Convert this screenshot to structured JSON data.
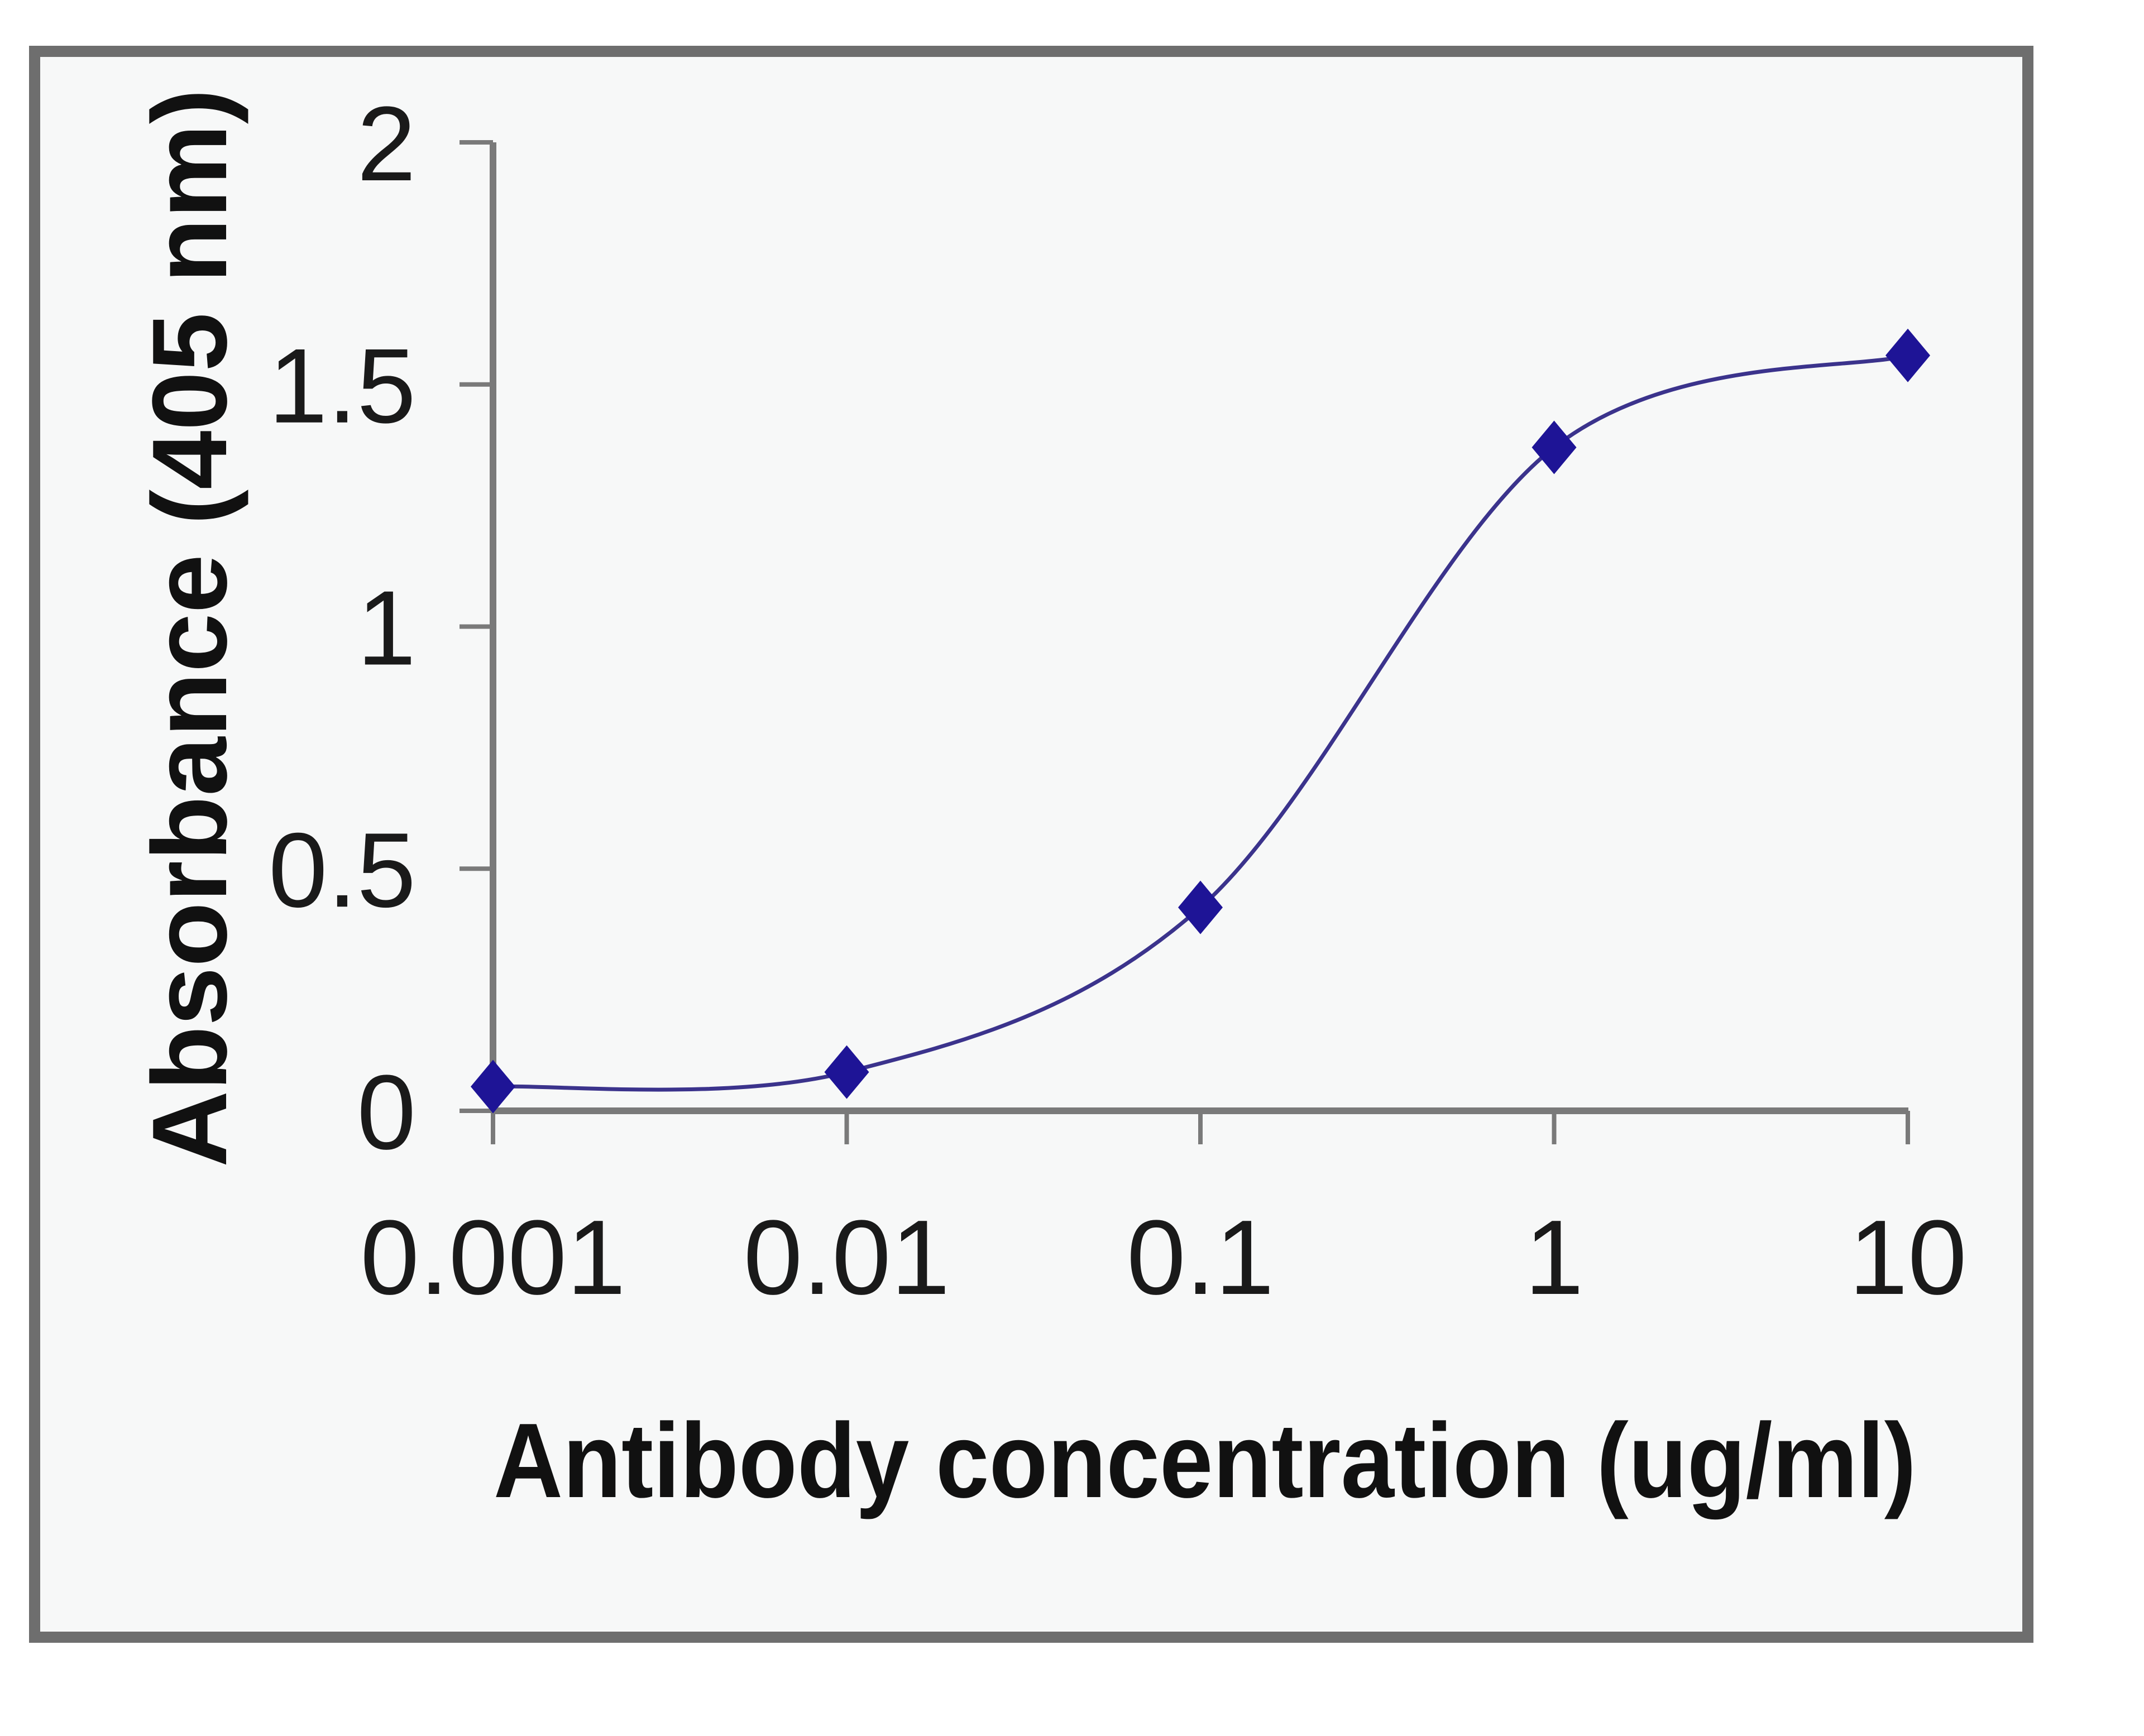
{
  "chart_data": {
    "type": "line",
    "title": "",
    "xlabel": "Antibody concentration (ug/ml)",
    "ylabel": "Absorbance (405 nm)",
    "x_scale": "log",
    "x": [
      0.001,
      0.01,
      0.1,
      1,
      10
    ],
    "x_tick_labels": [
      "0.001",
      "0.01",
      "0.1",
      "1",
      "10"
    ],
    "y_ticks": [
      0,
      0.5,
      1,
      1.5,
      2
    ],
    "y_tick_labels": [
      "0",
      "0.5",
      "1",
      "1.5",
      "2"
    ],
    "ylim": [
      0,
      2
    ],
    "xlim": [
      0.001,
      10
    ],
    "grid": false,
    "legend": null,
    "series": [
      {
        "name": "Absorbance",
        "marker": "diamond",
        "smooth": true,
        "values": [
          0.05,
          0.08,
          0.42,
          1.37,
          1.56
        ]
      }
    ]
  },
  "colors": {
    "series": "#1e1496",
    "line": "#3b338c",
    "axis": "#7a7a7a",
    "frame": "#6e6e6e",
    "plot_background": "#f7f8f8",
    "text": "#1a1a1a"
  }
}
